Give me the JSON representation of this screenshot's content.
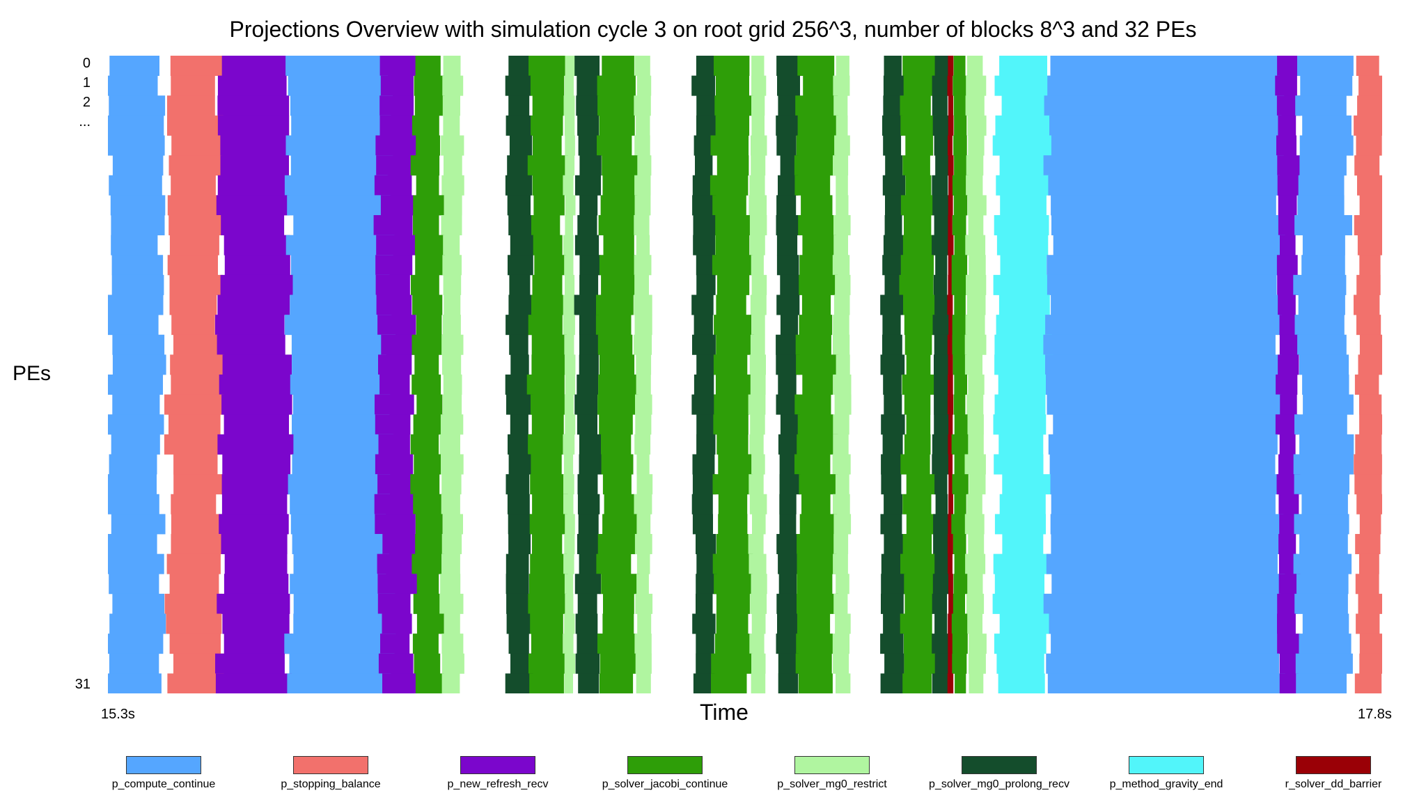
{
  "chart_data": {
    "type": "heatmap",
    "title": "Projections Overview with simulation cycle 3 on root grid 256^3, number of blocks 8^3 and 32 PEs",
    "xlabel": "Time",
    "ylabel": "PEs",
    "x_start_label": "15.3s",
    "x_end_label": "17.8s",
    "xlim": [
      15.3,
      17.8
    ],
    "y_tick_labels": [
      "0",
      "1",
      "2",
      "...",
      "31"
    ],
    "num_pes": 32,
    "legend_position": "bottom",
    "series": [
      {
        "name": "p_compute_continue",
        "color": "#55A6FF"
      },
      {
        "name": "p_stopping_balance",
        "color": "#F2716C"
      },
      {
        "name": "p_new_refresh_recv",
        "color": "#7B06CC"
      },
      {
        "name": "p_solver_jacobi_continue",
        "color": "#2E9E08"
      },
      {
        "name": "p_solver_mg0_restrict",
        "color": "#B0F5A0"
      },
      {
        "name": "p_solver_mg0_prolong_recv",
        "color": "#144D2C"
      },
      {
        "name": "p_method_gravity_end",
        "color": "#52F5FA"
      },
      {
        "name": "r_solver_dd_barrier",
        "color": "#9A0006"
      }
    ],
    "phases": [
      {
        "series": 0,
        "start": 15.3,
        "end": 15.405
      },
      {
        "series": 1,
        "start": 15.42,
        "end": 15.52
      },
      {
        "series": 2,
        "start": 15.52,
        "end": 15.655
      },
      {
        "series": 0,
        "start": 15.655,
        "end": 15.855
      },
      {
        "series": 2,
        "start": 15.83,
        "end": 15.9
      },
      {
        "series": 3,
        "start": 15.9,
        "end": 15.955
      },
      {
        "series": 4,
        "start": 15.955,
        "end": 15.995
      },
      {
        "series": 5,
        "start": 16.085,
        "end": 16.13
      },
      {
        "series": 3,
        "start": 16.13,
        "end": 16.195
      },
      {
        "series": 4,
        "start": 16.195,
        "end": 16.215
      },
      {
        "series": 5,
        "start": 16.22,
        "end": 16.265
      },
      {
        "series": 3,
        "start": 16.265,
        "end": 16.335
      },
      {
        "series": 4,
        "start": 16.335,
        "end": 16.365
      },
      {
        "series": 5,
        "start": 16.45,
        "end": 16.49
      },
      {
        "series": 3,
        "start": 16.49,
        "end": 16.56
      },
      {
        "series": 4,
        "start": 16.56,
        "end": 16.59
      },
      {
        "series": 5,
        "start": 16.615,
        "end": 16.655
      },
      {
        "series": 3,
        "start": 16.655,
        "end": 16.725
      },
      {
        "series": 4,
        "start": 16.725,
        "end": 16.755
      },
      {
        "series": 5,
        "start": 16.82,
        "end": 16.86
      },
      {
        "series": 3,
        "start": 16.86,
        "end": 16.92
      },
      {
        "series": 5,
        "start": 16.92,
        "end": 16.95
      },
      {
        "series": 7,
        "start": 16.948,
        "end": 16.958
      },
      {
        "series": 3,
        "start": 16.958,
        "end": 16.985
      },
      {
        "series": 4,
        "start": 16.985,
        "end": 17.02
      },
      {
        "series": 6,
        "start": 17.045,
        "end": 17.145
      },
      {
        "series": 0,
        "start": 17.145,
        "end": 17.6
      },
      {
        "series": 2,
        "start": 17.595,
        "end": 17.635
      },
      {
        "series": 0,
        "start": 17.635,
        "end": 17.735
      },
      {
        "series": 1,
        "start": 17.75,
        "end": 17.8
      }
    ]
  }
}
